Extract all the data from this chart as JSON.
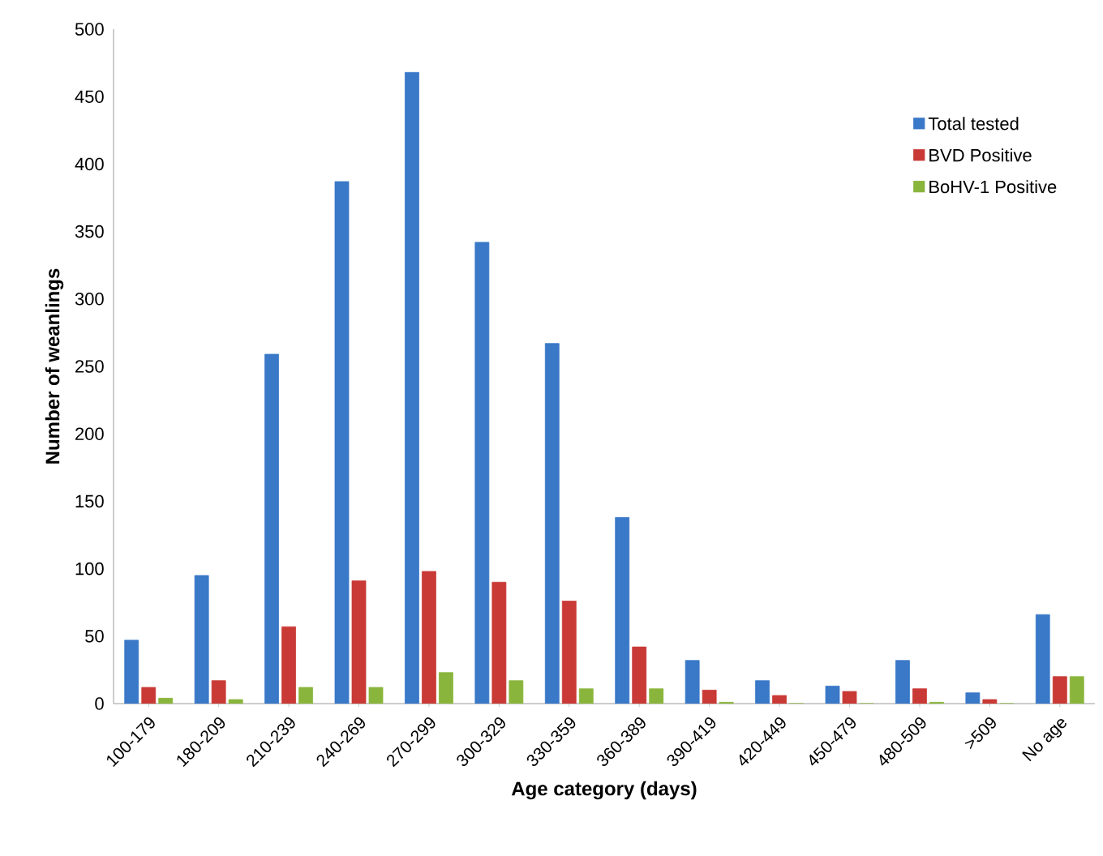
{
  "chart_data": {
    "type": "bar",
    "xlabel": "Age category (days)",
    "ylabel": "Number of weanlings",
    "categories": [
      "100-179",
      "180-209",
      "210-239",
      "240-269",
      "270-299",
      "300-329",
      "330-359",
      "360-389",
      "390-419",
      "420-449",
      "450-479",
      "480-509",
      ">509",
      "No age"
    ],
    "series": [
      {
        "name": "Total tested",
        "color": "#3a78c8",
        "values": [
          47,
          95,
          259,
          387,
          468,
          342,
          267,
          138,
          32,
          17,
          13,
          32,
          8,
          66
        ]
      },
      {
        "name": "BVD Positive",
        "color": "#c93a36",
        "values": [
          12,
          17,
          57,
          91,
          98,
          90,
          76,
          42,
          10,
          6,
          9,
          11,
          3,
          20
        ]
      },
      {
        "name": "BoHV-1 Positive",
        "color": "#8ab53c",
        "values": [
          4,
          3,
          12,
          12,
          23,
          17,
          11,
          11,
          1,
          0,
          0,
          1,
          0,
          20
        ]
      }
    ],
    "ylim": [
      0,
      500
    ],
    "yticks": [
      0,
      50,
      100,
      150,
      200,
      250,
      300,
      350,
      400,
      450,
      500
    ],
    "grid": false,
    "legend": "top right"
  }
}
